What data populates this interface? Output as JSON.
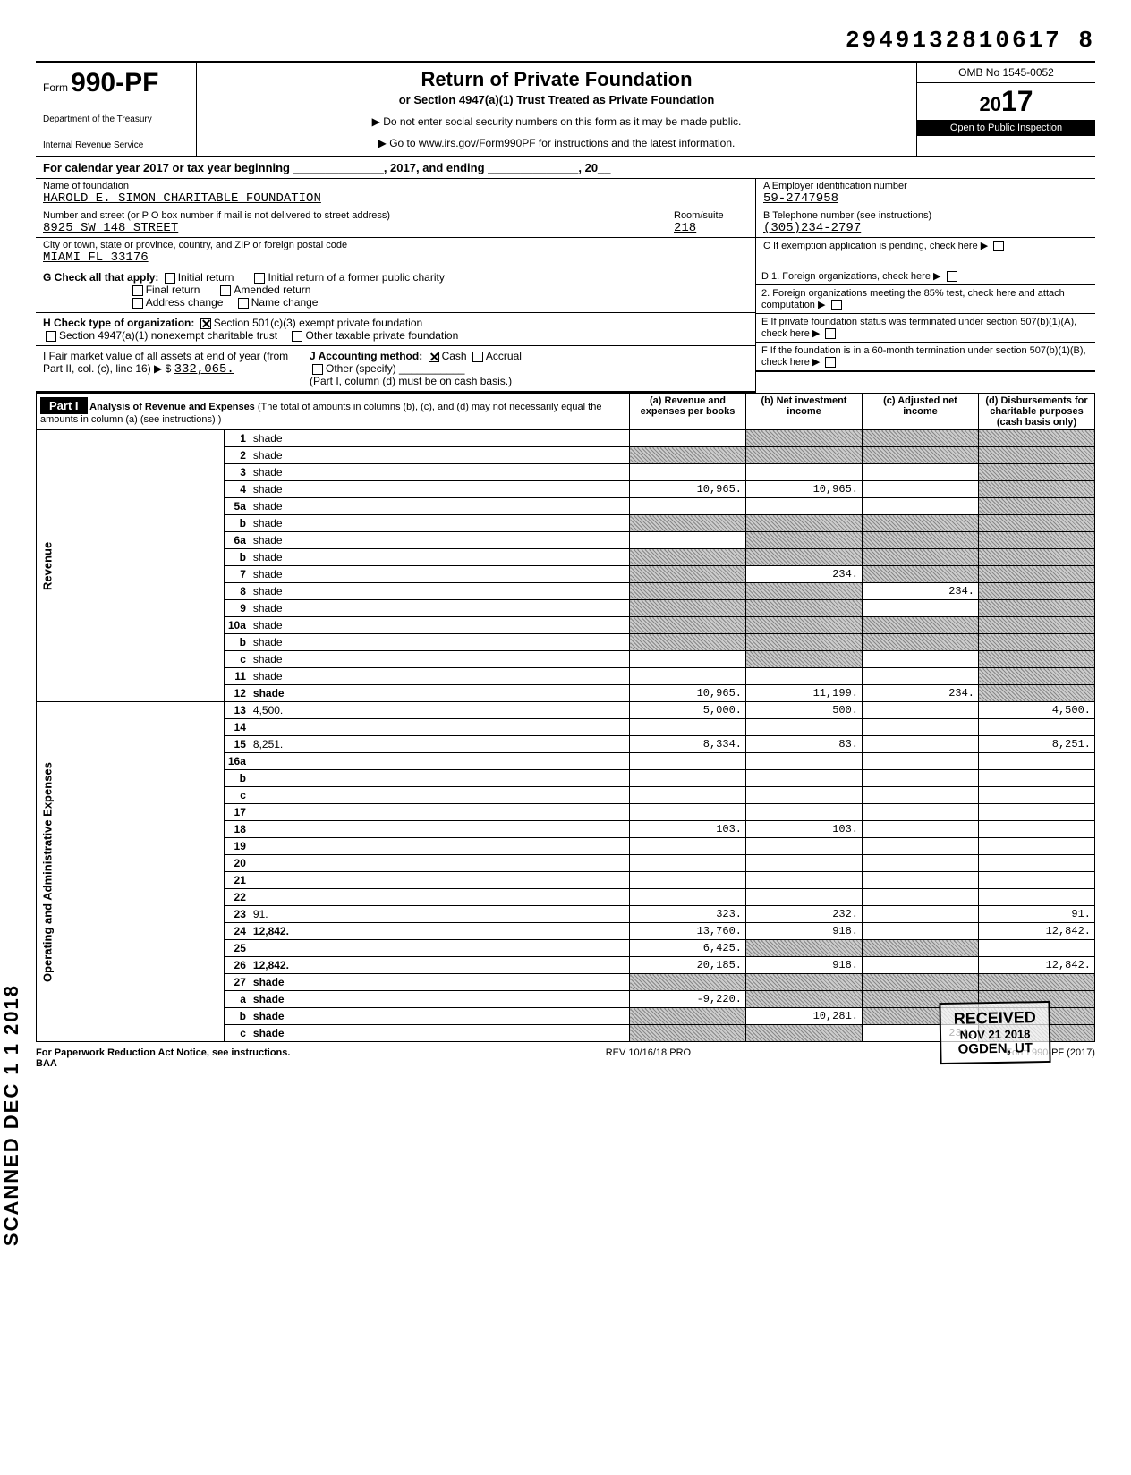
{
  "doc_id": "2949132810617 8",
  "form": {
    "number": "990-PF",
    "prefix": "Form",
    "title": "Return of Private Foundation",
    "subtitle": "or Section 4947(a)(1) Trust Treated as Private Foundation",
    "note1": "▶ Do not enter social security numbers on this form as it may be made public.",
    "note2": "▶ Go to www.irs.gov/Form990PF for instructions and the latest information.",
    "dept1": "Department of the Treasury",
    "dept2": "Internal Revenue Service",
    "omb": "OMB No 1545-0052",
    "year": "2017",
    "year_prefix": "20",
    "inspection": "Open to Public Inspection"
  },
  "cal_year": "For calendar year 2017 or tax year beginning ______________, 2017, and ending ______________, 20__",
  "foundation": {
    "name_label": "Name of foundation",
    "name": "HAROLD E. SIMON CHARITABLE FOUNDATION",
    "addr_label": "Number and street (or P O box number if mail is not delivered to street address)",
    "street": "8925 SW 148 STREET",
    "room_label": "Room/suite",
    "room": "218",
    "city_label": "City or town, state or province, country, and ZIP or foreign postal code",
    "city": "MIAMI FL 33176"
  },
  "box_A": {
    "label": "A  Employer identification number",
    "value": "59-2747958"
  },
  "box_B": {
    "label": "B  Telephone number (see instructions)",
    "value": "(305)234-2797"
  },
  "box_C": {
    "label": "C  If exemption application is pending, check here ▶"
  },
  "box_D": {
    "d1": "D 1. Foreign organizations, check here",
    "d2": "2. Foreign organizations meeting the 85% test, check here and attach computation"
  },
  "box_E": "E  If private foundation status was terminated under section 507(b)(1)(A), check here",
  "box_F": "F  If the foundation is in a 60-month termination under section 507(b)(1)(B), check here",
  "section_G": {
    "label": "G  Check all that apply:",
    "opts": [
      "Initial return",
      "Initial return of a former public charity",
      "Final return",
      "Amended return",
      "Address change",
      "Name change"
    ]
  },
  "section_H": {
    "label": "H  Check type of organization:",
    "opt1": "Section 501(c)(3) exempt private foundation",
    "opt2": "Section 4947(a)(1) nonexempt charitable trust",
    "opt3": "Other taxable private foundation"
  },
  "section_I": {
    "label": "I  Fair market value of all assets at end of year (from Part II, col. (c), line 16) ▶ $",
    "value": "332,065."
  },
  "section_J": {
    "label": "J  Accounting method:",
    "opt1": "Cash",
    "opt2": "Accrual",
    "opt3": "Other (specify)",
    "note": "(Part I, column (d) must be on cash basis.)"
  },
  "part1": {
    "label": "Part I",
    "title": "Analysis of Revenue and Expenses",
    "title_note": "(The total of amounts in columns (b), (c), and (d) may not necessarily equal the amounts in column (a) (see instructions) )",
    "cols": {
      "a": "(a) Revenue and expenses per books",
      "b": "(b) Net investment income",
      "c": "(c) Adjusted net income",
      "d": "(d) Disbursements for charitable purposes (cash basis only)"
    }
  },
  "side_labels": {
    "revenue": "Revenue",
    "expenses": "Operating and Administrative Expenses"
  },
  "lines": [
    {
      "n": "1",
      "d": "shade",
      "a": "",
      "b": "shade",
      "c": "shade"
    },
    {
      "n": "2",
      "d": "shade",
      "a": "shade",
      "b": "shade",
      "c": "shade"
    },
    {
      "n": "3",
      "d": "shade",
      "a": "",
      "b": "",
      "c": ""
    },
    {
      "n": "4",
      "d": "shade",
      "a": "10,965.",
      "b": "10,965.",
      "c": ""
    },
    {
      "n": "5a",
      "d": "shade",
      "a": "",
      "b": "",
      "c": ""
    },
    {
      "n": "b",
      "d": "shade",
      "a": "shade",
      "b": "shade",
      "c": "shade"
    },
    {
      "n": "6a",
      "d": "shade",
      "a": "",
      "b": "shade",
      "c": "shade"
    },
    {
      "n": "b",
      "d": "shade",
      "a": "shade",
      "b": "shade",
      "c": "shade"
    },
    {
      "n": "7",
      "d": "shade",
      "a": "shade",
      "b": "234.",
      "c": "shade"
    },
    {
      "n": "8",
      "d": "shade",
      "a": "shade",
      "b": "shade",
      "c": "234."
    },
    {
      "n": "9",
      "d": "shade",
      "a": "shade",
      "b": "shade",
      "c": ""
    },
    {
      "n": "10a",
      "d": "shade",
      "a": "shade",
      "b": "shade",
      "c": "shade"
    },
    {
      "n": "b",
      "d": "shade",
      "a": "shade",
      "b": "shade",
      "c": "shade"
    },
    {
      "n": "c",
      "d": "shade",
      "a": "",
      "b": "shade",
      "c": ""
    },
    {
      "n": "11",
      "d": "shade",
      "a": "",
      "b": "",
      "c": ""
    },
    {
      "n": "12",
      "d": "shade",
      "a": "10,965.",
      "b": "11,199.",
      "c": "234.",
      "bold": true
    },
    {
      "n": "13",
      "d": "4,500.",
      "a": "5,000.",
      "b": "500.",
      "c": ""
    },
    {
      "n": "14",
      "d": "",
      "a": "",
      "b": "",
      "c": ""
    },
    {
      "n": "15",
      "d": "8,251.",
      "a": "8,334.",
      "b": "83.",
      "c": ""
    },
    {
      "n": "16a",
      "d": "",
      "a": "",
      "b": "",
      "c": ""
    },
    {
      "n": "b",
      "d": "",
      "a": "",
      "b": "",
      "c": ""
    },
    {
      "n": "c",
      "d": "",
      "a": "",
      "b": "",
      "c": ""
    },
    {
      "n": "17",
      "d": "",
      "a": "",
      "b": "",
      "c": ""
    },
    {
      "n": "18",
      "d": "",
      "a": "103.",
      "b": "103.",
      "c": ""
    },
    {
      "n": "19",
      "d": "",
      "a": "",
      "b": "",
      "c": ""
    },
    {
      "n": "20",
      "d": "",
      "a": "",
      "b": "",
      "c": ""
    },
    {
      "n": "21",
      "d": "",
      "a": "",
      "b": "",
      "c": ""
    },
    {
      "n": "22",
      "d": "",
      "a": "",
      "b": "",
      "c": ""
    },
    {
      "n": "23",
      "d": "91.",
      "a": "323.",
      "b": "232.",
      "c": ""
    },
    {
      "n": "24",
      "d": "12,842.",
      "a": "13,760.",
      "b": "918.",
      "c": "",
      "bold": true
    },
    {
      "n": "25",
      "d": "",
      "a": "6,425.",
      "b": "shade",
      "c": "shade"
    },
    {
      "n": "26",
      "d": "12,842.",
      "a": "20,185.",
      "b": "918.",
      "c": "",
      "bold": true
    },
    {
      "n": "27",
      "d": "shade",
      "a": "shade",
      "b": "shade",
      "c": "shade",
      "bold": true
    },
    {
      "n": "a",
      "d": "shade",
      "a": "-9,220.",
      "b": "shade",
      "c": "shade",
      "bold": true
    },
    {
      "n": "b",
      "d": "shade",
      "a": "shade",
      "b": "10,281.",
      "c": "shade",
      "bold": true
    },
    {
      "n": "c",
      "d": "shade",
      "a": "shade",
      "b": "shade",
      "c": "234.",
      "bold": true
    }
  ],
  "stamps": {
    "scanned": "SCANNED DEC 1 1 2018",
    "received": "RECEIVED",
    "received_date": "NOV 21 2018",
    "received_loc": "OGDEN, UT"
  },
  "footer": {
    "left": "For Paperwork Reduction Act Notice, see instructions.",
    "baa": "BAA",
    "center": "REV 10/16/18 PRO",
    "right": "Form 990-PF (2017)"
  }
}
